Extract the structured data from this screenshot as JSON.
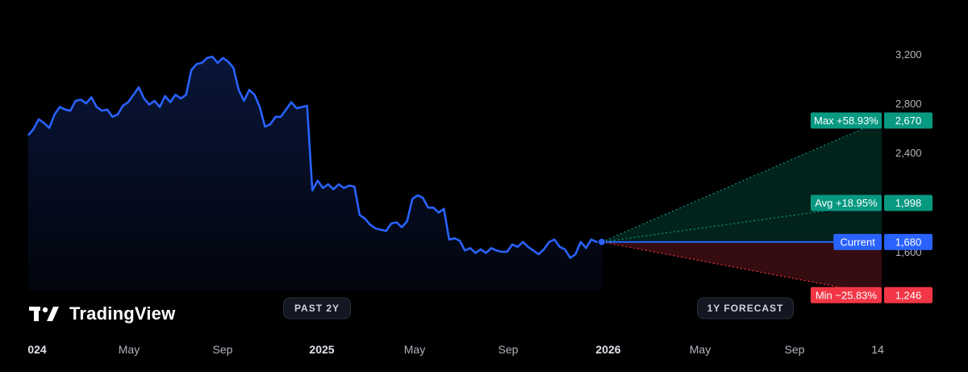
{
  "brand": {
    "name": "TradingView"
  },
  "chart_data": {
    "type": "line",
    "y_ticks": [
      "3,200",
      "2,800",
      "2,400",
      "1,600"
    ],
    "x_ticks": [
      {
        "label": "024",
        "bold": true
      },
      {
        "label": "May",
        "bold": false
      },
      {
        "label": "Sep",
        "bold": false
      },
      {
        "label": "2025",
        "bold": true
      },
      {
        "label": "May",
        "bold": false
      },
      {
        "label": "Sep",
        "bold": false
      },
      {
        "label": "2026",
        "bold": true
      },
      {
        "label": "May",
        "bold": false
      },
      {
        "label": "Sep",
        "bold": false
      },
      {
        "label": "14",
        "bold": false
      }
    ],
    "ylim": [
      1400,
      3300
    ],
    "colors": {
      "line": "#2962ff",
      "max": "#089981",
      "avg": "#089981",
      "current": "#2962ff",
      "min": "#f23645"
    },
    "series": [
      {
        "values": [
          2550,
          2600,
          2680,
          2650,
          2610,
          2720,
          2780,
          2760,
          2750,
          2830,
          2840,
          2810,
          2860,
          2780,
          2750,
          2760,
          2700,
          2720,
          2790,
          2820,
          2880,
          2940,
          2850,
          2800,
          2830,
          2780,
          2870,
          2820,
          2880,
          2850,
          2880,
          3080,
          3130,
          3140,
          3180,
          3190,
          3140,
          3180,
          3150,
          3100,
          2920,
          2830,
          2920,
          2880,
          2780,
          2620,
          2640,
          2700,
          2700,
          2760,
          2820,
          2770,
          2780,
          2790,
          2100,
          2180,
          2120,
          2150,
          2110,
          2150,
          2120,
          2140,
          2130,
          1900,
          1870,
          1820,
          1790,
          1780,
          1770,
          1830,
          1840,
          1800,
          1850,
          2030,
          2060,
          2040,
          1960,
          1960,
          1920,
          1950,
          1700,
          1710,
          1690,
          1610,
          1630,
          1590,
          1620,
          1590,
          1630,
          1610,
          1600,
          1600,
          1660,
          1640,
          1680,
          1640,
          1610,
          1580,
          1620,
          1680,
          1700,
          1640,
          1620,
          1550,
          1580,
          1680,
          1630,
          1700,
          1680,
          1680
        ]
      }
    ],
    "forecast": {
      "period_label": "1Y FORECAST",
      "past_label": "PAST 2Y",
      "max": {
        "label": "Max +58.93%",
        "value": 2670,
        "value_label": "2,670"
      },
      "avg": {
        "label": "Avg +18.95%",
        "value": 1998,
        "value_label": "1,998"
      },
      "current": {
        "label": "Current",
        "value": 1680,
        "value_label": "1,680"
      },
      "min": {
        "label": "Min −25.83%",
        "value": 1246,
        "value_label": "1,246"
      }
    }
  }
}
